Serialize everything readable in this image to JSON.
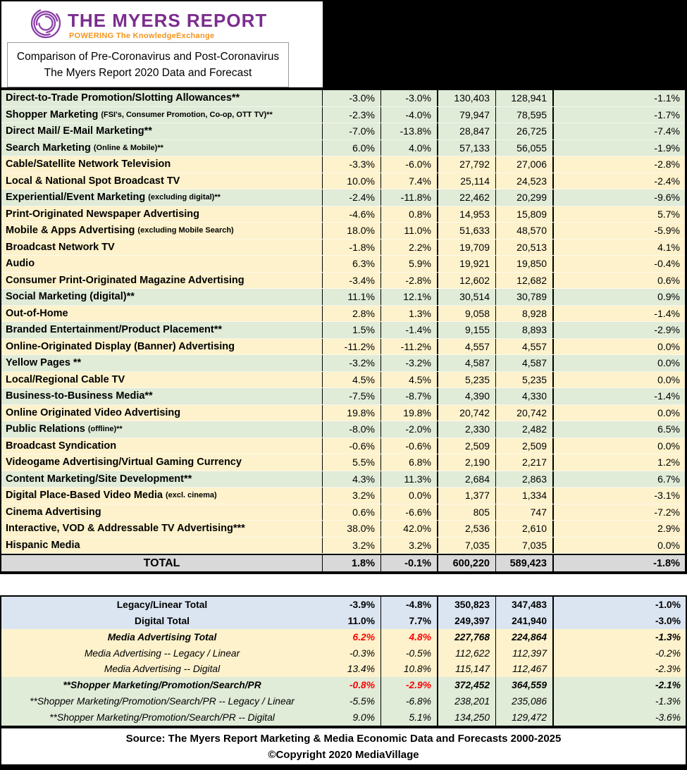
{
  "header": {
    "logo_text": "THE MYERS REPORT",
    "logo_tagline": "POWERING The KnowledgeExchange",
    "title_line1": "Comparison of Pre-Coronavirus and Post-Coronavirus",
    "title_line2": "The Myers Report 2020 Data and Forecast"
  },
  "colors": {
    "brand_purple": "#7b2d8e",
    "brand_orange": "#f7941d",
    "row_green": "#e0ebd8",
    "row_yellow": "#fdf2cc",
    "row_blue": "#dbe5f1",
    "total_gray": "#d9d9d9",
    "alert_red": "#ff0000",
    "frame_black": "#000000"
  },
  "main_table": {
    "rows": [
      {
        "label": "Direct-to-Trade Promotion/Slotting Allowances**",
        "label_small": "",
        "pre_pct": "-3.0%",
        "post_pct": "-3.0%",
        "pre_val": "130,403",
        "post_val": "128,941",
        "change_pct": "-1.1%",
        "tint": "green"
      },
      {
        "label": "Shopper Marketing",
        "label_small": "(FSI's, Consumer Promotion, Co-op, OTT TV)**",
        "pre_pct": "-2.3%",
        "post_pct": "-4.0%",
        "pre_val": "79,947",
        "post_val": "78,595",
        "change_pct": "-1.7%",
        "tint": "green"
      },
      {
        "label": "Direct Mail/ E-Mail Marketing**",
        "label_small": "",
        "pre_pct": "-7.0%",
        "post_pct": "-13.8%",
        "pre_val": "28,847",
        "post_val": "26,725",
        "change_pct": "-7.4%",
        "tint": "green"
      },
      {
        "label": "Search Marketing",
        "label_small": "(Online & Mobile)**",
        "pre_pct": "6.0%",
        "post_pct": "4.0%",
        "pre_val": "57,133",
        "post_val": "56,055",
        "change_pct": "-1.9%",
        "tint": "green"
      },
      {
        "label": "Cable/Satellite Network Television",
        "label_small": "",
        "pre_pct": "-3.3%",
        "post_pct": "-6.0%",
        "pre_val": "27,792",
        "post_val": "27,006",
        "change_pct": "-2.8%",
        "tint": "yellow"
      },
      {
        "label": "Local & National Spot Broadcast TV",
        "label_small": "",
        "pre_pct": "10.0%",
        "post_pct": "7.4%",
        "pre_val": "25,114",
        "post_val": "24,523",
        "change_pct": "-2.4%",
        "tint": "yellow"
      },
      {
        "label": "Experiential/Event Marketing",
        "label_small": "(excluding digital)**",
        "pre_pct": "-2.4%",
        "post_pct": "-11.8%",
        "pre_val": "22,462",
        "post_val": "20,299",
        "change_pct": "-9.6%",
        "tint": "green"
      },
      {
        "label": "Print-Originated Newspaper Advertising",
        "label_small": "",
        "pre_pct": "-4.6%",
        "post_pct": "0.8%",
        "pre_val": "14,953",
        "post_val": "15,809",
        "change_pct": "5.7%",
        "tint": "yellow"
      },
      {
        "label": "Mobile & Apps Advertising",
        "label_small": "(excluding Mobile Search)",
        "pre_pct": "18.0%",
        "post_pct": "11.0%",
        "pre_val": "51,633",
        "post_val": "48,570",
        "change_pct": "-5.9%",
        "tint": "yellow"
      },
      {
        "label": "Broadcast Network TV",
        "label_small": "",
        "pre_pct": "-1.8%",
        "post_pct": "2.2%",
        "pre_val": "19,709",
        "post_val": "20,513",
        "change_pct": "4.1%",
        "tint": "yellow"
      },
      {
        "label": "Audio",
        "label_small": "",
        "pre_pct": "6.3%",
        "post_pct": "5.9%",
        "pre_val": "19,921",
        "post_val": "19,850",
        "change_pct": "-0.4%",
        "tint": "yellow"
      },
      {
        "label": "Consumer Print-Originated Magazine Advertising",
        "label_small": "",
        "pre_pct": "-3.4%",
        "post_pct": "-2.8%",
        "pre_val": "12,602",
        "post_val": "12,682",
        "change_pct": "0.6%",
        "tint": "yellow"
      },
      {
        "label": "Social Marketing (digital)**",
        "label_small": "",
        "pre_pct": "11.1%",
        "post_pct": "12.1%",
        "pre_val": "30,514",
        "post_val": "30,789",
        "change_pct": "0.9%",
        "tint": "green"
      },
      {
        "label": "Out-of-Home",
        "label_small": "",
        "pre_pct": "2.8%",
        "post_pct": "1.3%",
        "pre_val": "9,058",
        "post_val": "8,928",
        "change_pct": "-1.4%",
        "tint": "yellow"
      },
      {
        "label": "Branded Entertainment/Product Placement**",
        "label_small": "",
        "pre_pct": "1.5%",
        "post_pct": "-1.4%",
        "pre_val": "9,155",
        "post_val": "8,893",
        "change_pct": "-2.9%",
        "tint": "green"
      },
      {
        "label": "Online-Originated Display (Banner) Advertising",
        "label_small": "",
        "pre_pct": "-11.2%",
        "post_pct": "-11.2%",
        "pre_val": "4,557",
        "post_val": "4,557",
        "change_pct": "0.0%",
        "tint": "yellow"
      },
      {
        "label": "Yellow Pages **",
        "label_small": "",
        "pre_pct": "-3.2%",
        "post_pct": "-3.2%",
        "pre_val": "4,587",
        "post_val": "4,587",
        "change_pct": "0.0%",
        "tint": "green"
      },
      {
        "label": "Local/Regional Cable TV",
        "label_small": "",
        "pre_pct": "4.5%",
        "post_pct": "4.5%",
        "pre_val": "5,235",
        "post_val": "5,235",
        "change_pct": "0.0%",
        "tint": "yellow"
      },
      {
        "label": "Business-to-Business Media**",
        "label_small": "",
        "pre_pct": "-7.5%",
        "post_pct": "-8.7%",
        "pre_val": "4,390",
        "post_val": "4,330",
        "change_pct": "-1.4%",
        "tint": "green"
      },
      {
        "label": "Online Originated Video Advertising",
        "label_small": "",
        "pre_pct": "19.8%",
        "post_pct": "19.8%",
        "pre_val": "20,742",
        "post_val": "20,742",
        "change_pct": "0.0%",
        "tint": "yellow"
      },
      {
        "label": "Public Relations",
        "label_small": "(offline)**",
        "pre_pct": "-8.0%",
        "post_pct": "-2.0%",
        "pre_val": "2,330",
        "post_val": "2,482",
        "change_pct": "6.5%",
        "tint": "green"
      },
      {
        "label": "Broadcast Syndication",
        "label_small": "",
        "pre_pct": "-0.6%",
        "post_pct": "-0.6%",
        "pre_val": "2,509",
        "post_val": "2,509",
        "change_pct": "0.0%",
        "tint": "yellow"
      },
      {
        "label": "Videogame Advertising/Virtual Gaming Currency",
        "label_small": "",
        "pre_pct": "5.5%",
        "post_pct": "6.8%",
        "pre_val": "2,190",
        "post_val": "2,217",
        "change_pct": "1.2%",
        "tint": "yellow"
      },
      {
        "label": "Content Marketing/Site Development**",
        "label_small": "",
        "pre_pct": "4.3%",
        "post_pct": "11.3%",
        "pre_val": "2,684",
        "post_val": "2,863",
        "change_pct": "6.7%",
        "tint": "green"
      },
      {
        "label": "Digital Place-Based Video Media",
        "label_small": "(excl. cinema)",
        "pre_pct": "3.2%",
        "post_pct": "0.0%",
        "pre_val": "1,377",
        "post_val": "1,334",
        "change_pct": "-3.1%",
        "tint": "yellow"
      },
      {
        "label": "Cinema Advertising",
        "label_small": "",
        "pre_pct": "0.6%",
        "post_pct": "-6.6%",
        "pre_val": "805",
        "post_val": "747",
        "change_pct": "-7.2%",
        "tint": "yellow"
      },
      {
        "label": "Interactive, VOD & Addressable TV Advertising***",
        "label_small": "",
        "pre_pct": "38.0%",
        "post_pct": "42.0%",
        "pre_val": "2,536",
        "post_val": "2,610",
        "change_pct": "2.9%",
        "tint": "yellow"
      },
      {
        "label": "Hispanic Media",
        "label_small": "",
        "pre_pct": "3.2%",
        "post_pct": "3.2%",
        "pre_val": "7,035",
        "post_val": "7,035",
        "change_pct": "0.0%",
        "tint": "yellow"
      }
    ],
    "total": {
      "label": "TOTAL",
      "pre_pct": "1.8%",
      "post_pct": "-0.1%",
      "pre_val": "600,220",
      "post_val": "589,423",
      "change_pct": "-1.8%",
      "tint": "gray"
    }
  },
  "summary_table": {
    "rows": [
      {
        "label": "Legacy/Linear Total",
        "pre_pct": "-3.9%",
        "post_pct": "-4.8%",
        "pre_val": "350,823",
        "post_val": "347,483",
        "change_pct": "-1.0%",
        "tint": "blue",
        "style": "bold",
        "pct_red": false
      },
      {
        "label": "Digital Total",
        "pre_pct": "11.0%",
        "post_pct": "7.7%",
        "pre_val": "249,397",
        "post_val": "241,940",
        "change_pct": "-3.0%",
        "tint": "blue",
        "style": "bold",
        "pct_red": false
      },
      {
        "label": "Media Advertising Total",
        "pre_pct": "6.2%",
        "post_pct": "4.8%",
        "pre_val": "227,768",
        "post_val": "224,864",
        "change_pct": "-1.3%",
        "tint": "yellow",
        "style": "bold-italic",
        "pct_red": true
      },
      {
        "label": "Media Advertising -- Legacy / Linear",
        "pre_pct": "-0.3%",
        "post_pct": "-0.5%",
        "pre_val": "112,622",
        "post_val": "112,397",
        "change_pct": "-0.2%",
        "tint": "yellow",
        "style": "italic",
        "pct_red": false
      },
      {
        "label": "Media Advertising -- Digital",
        "pre_pct": "13.4%",
        "post_pct": "10.8%",
        "pre_val": "115,147",
        "post_val": "112,467",
        "change_pct": "-2.3%",
        "tint": "yellow",
        "style": "italic",
        "pct_red": false
      },
      {
        "label": "**Shopper Marketing/Promotion/Search/PR",
        "pre_pct": "-0.8%",
        "post_pct": "-2.9%",
        "pre_val": "372,452",
        "post_val": "364,559",
        "change_pct": "-2.1%",
        "tint": "green2",
        "style": "bold-italic",
        "pct_red": true
      },
      {
        "label": "**Shopper Marketing/Promotion/Search/PR -- Legacy / Linear",
        "pre_pct": "-5.5%",
        "post_pct": "-6.8%",
        "pre_val": "238,201",
        "post_val": "235,086",
        "change_pct": "-1.3%",
        "tint": "green2",
        "style": "italic",
        "pct_red": false
      },
      {
        "label": "**Shopper Marketing/Promotion/Search/PR -- Digital",
        "pre_pct": "9.0%",
        "post_pct": "5.1%",
        "pre_val": "134,250",
        "post_val": "129,472",
        "change_pct": "-3.6%",
        "tint": "green2",
        "style": "italic",
        "pct_red": false
      }
    ]
  },
  "footer": {
    "source": "Source: The Myers Report Marketing & Media Economic Data and Forecasts 2000-2025",
    "copyright": "©Copyright 2020 MediaVillage"
  }
}
